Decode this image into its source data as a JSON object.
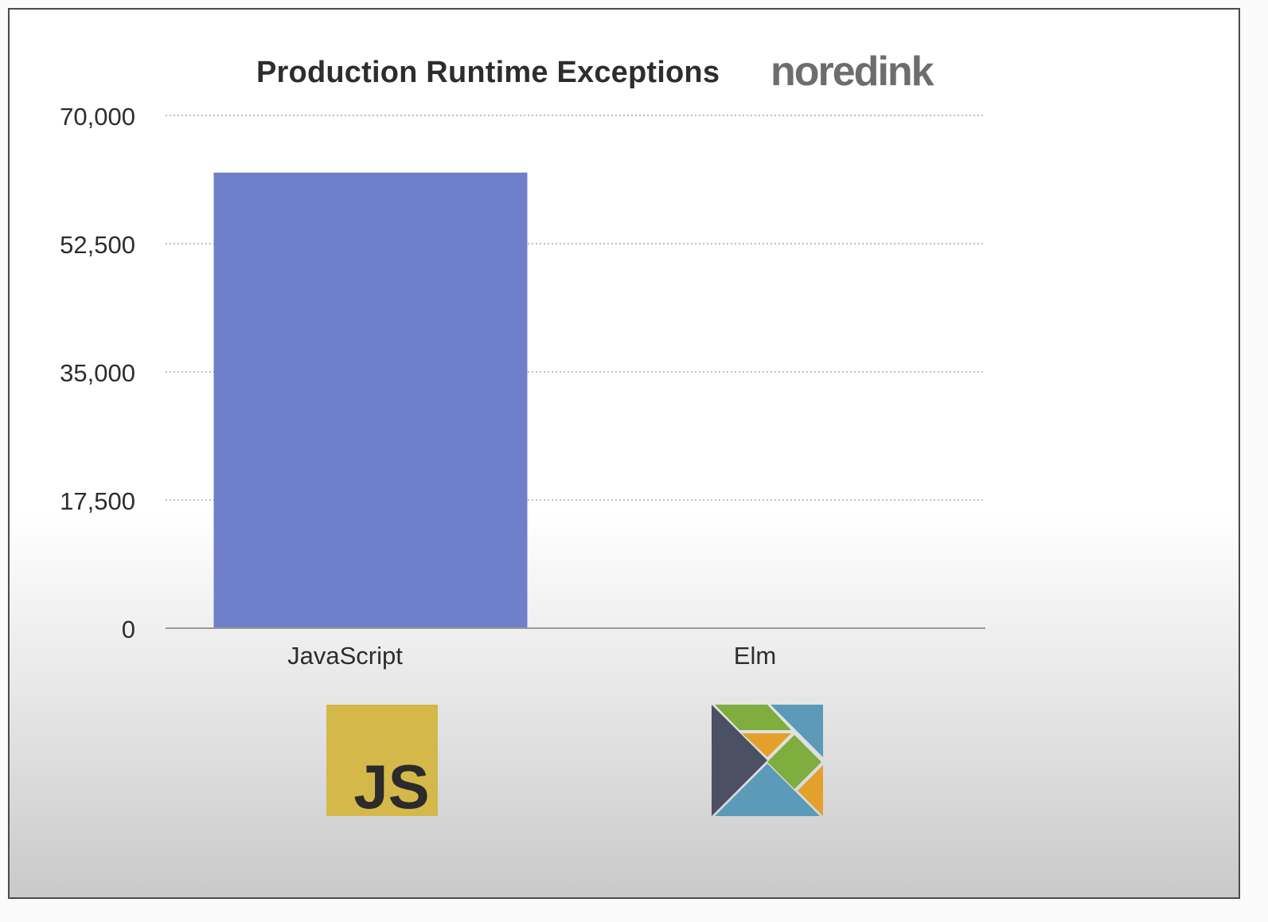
{
  "brand_label": "noredink",
  "logos": [
    {
      "category": "JavaScript",
      "icon": "javascript-logo-icon",
      "color": "#d4b94a",
      "text": "JS"
    },
    {
      "category": "Elm",
      "icon": "elm-tangram-logo-icon",
      "colors": [
        "#4b5063",
        "#7fad3e",
        "#e3a12c",
        "#5b9ab8"
      ]
    }
  ],
  "colors": {
    "bar": "#6f7fca",
    "grid": "#bdbdbd",
    "axis": "#9a9a9a",
    "text": "#2d2d2d"
  },
  "chart_data": {
    "type": "bar",
    "title": "Production Runtime Exceptions",
    "xlabel": "",
    "ylabel": "",
    "categories": [
      "JavaScript",
      "Elm"
    ],
    "values": [
      62200,
      0
    ],
    "ylim": [
      0,
      70000
    ],
    "yticks": [
      0,
      17500,
      35000,
      52500,
      70000
    ],
    "ytick_labels": [
      "0",
      "17,500",
      "35,000",
      "52,500",
      "70,000"
    ],
    "grid": true,
    "legend": "none"
  }
}
